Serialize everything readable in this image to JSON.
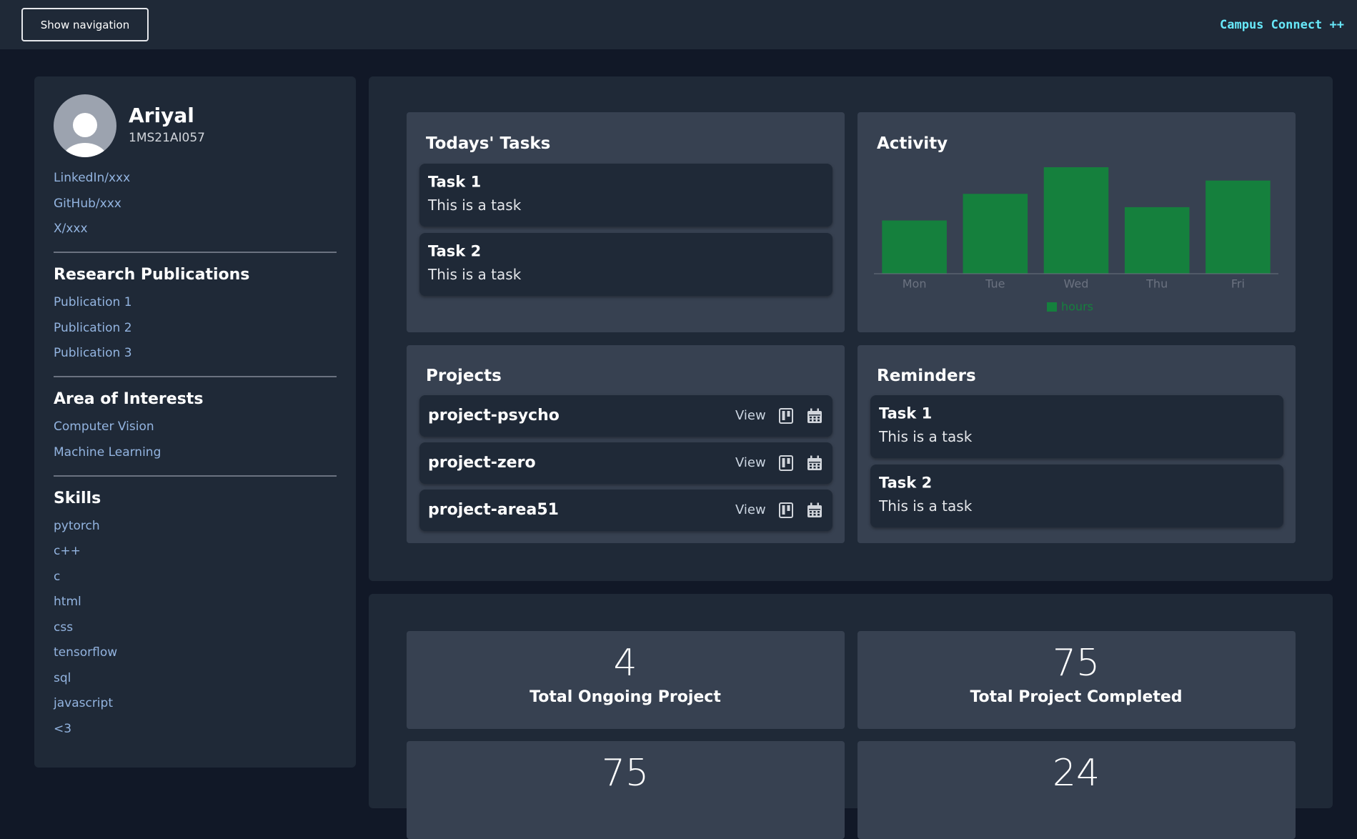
{
  "header": {
    "button": "Show navigation",
    "brand": "Campus Connect ++"
  },
  "profile": {
    "name": "Ariyal",
    "id": "1MS21AI057",
    "links": [
      "LinkedIn/xxx",
      "GitHub/xxx",
      "X/xxx"
    ]
  },
  "sections": [
    {
      "title": "Research Publications",
      "items": [
        "Publication 1",
        "Publication 2",
        "Publication 3"
      ]
    },
    {
      "title": "Area of Interests",
      "items": [
        "Computer Vision",
        "Machine Learning"
      ]
    },
    {
      "title": "Skills",
      "items": [
        "pytorch",
        "c++",
        "c",
        "html",
        "css",
        "tensorflow",
        "sql",
        "javascript",
        "<3"
      ]
    }
  ],
  "todays_tasks": {
    "title": "Todays' Tasks",
    "tasks": [
      {
        "title": "Task 1",
        "text": "This is a task"
      },
      {
        "title": "Task 2",
        "text": "This is a task"
      }
    ]
  },
  "chart_data": {
    "type": "bar",
    "title": "Activity",
    "categories": [
      "Mon",
      "Tue",
      "Wed",
      "Thu",
      "Fri"
    ],
    "series": [
      {
        "name": "hours",
        "color": "#15803d",
        "values": [
          2,
          3,
          4,
          2.5,
          3.5
        ]
      }
    ],
    "ylim": [
      0,
      4
    ]
  },
  "projects": {
    "title": "Projects",
    "action": "View",
    "items": [
      "project-psycho",
      "project-zero",
      "project-area51"
    ]
  },
  "reminders": {
    "title": "Reminders",
    "tasks": [
      {
        "title": "Task 1",
        "text": "This is a task"
      },
      {
        "title": "Task 2",
        "text": "This is a task"
      }
    ]
  },
  "stats": [
    {
      "value": 4,
      "label": "Total Ongoing Project"
    },
    {
      "value": 75,
      "label": "Total Project Completed"
    },
    {
      "value": 75
    },
    {
      "value": 24
    }
  ]
}
